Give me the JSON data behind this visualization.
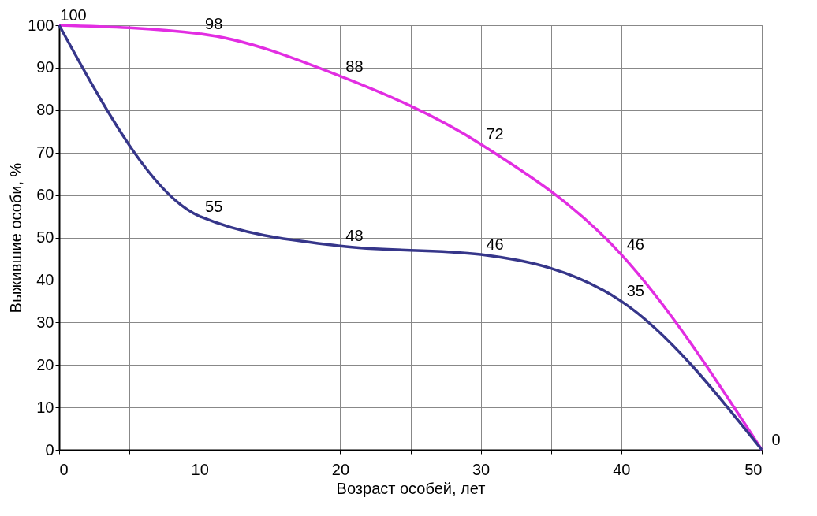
{
  "chart_data": {
    "type": "line",
    "xlabel": "Возраст особей, лет",
    "ylabel": "Выжившие особи, %",
    "x": [
      0,
      10,
      20,
      30,
      40,
      50
    ],
    "series": [
      {
        "color": "#e22de2",
        "values": [
          100,
          98,
          88,
          72,
          46,
          0
        ],
        "value_labels": [
          "100",
          "98",
          "88",
          "72",
          "46",
          "0"
        ]
      },
      {
        "color": "#36368a",
        "values": [
          100,
          55,
          48,
          46,
          35,
          0
        ],
        "value_labels": [
          null,
          "55",
          "48",
          "46",
          "35",
          null
        ]
      }
    ],
    "xlim": [
      0,
      50
    ],
    "ylim": [
      0,
      100
    ],
    "xticks": [
      0,
      {
        "value": 5,
        "label": null
      },
      10,
      {
        "value": 15,
        "label": null
      },
      20,
      {
        "value": 25,
        "label": null
      },
      30,
      {
        "value": 35,
        "label": null
      },
      40,
      {
        "value": 45,
        "label": null
      },
      50
    ],
    "yticks": [
      0,
      10,
      20,
      30,
      40,
      50,
      60,
      70,
      80,
      90,
      100
    ],
    "grid": true,
    "line_style": "solid",
    "marker": "none"
  }
}
